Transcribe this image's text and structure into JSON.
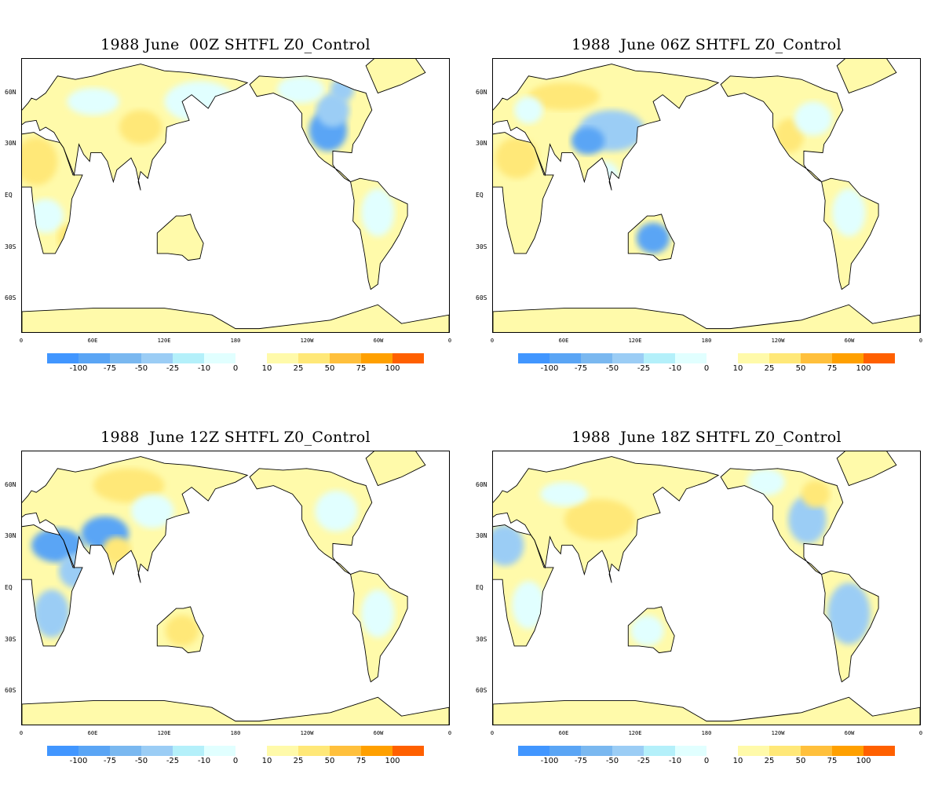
{
  "panels": [
    {
      "title": "1988 June  00Z SHTFL Z0_Control",
      "hour": "00Z"
    },
    {
      "title": "1988  June 06Z SHTFL Z0_Control",
      "hour": "06Z"
    },
    {
      "title": "1988  June 12Z SHTFL Z0_Control",
      "hour": "12Z"
    },
    {
      "title": "1988  June 18Z SHTFL Z0_Control",
      "hour": "18Z"
    }
  ],
  "lat_labels": [
    "60N",
    "30N",
    "EQ",
    "30S",
    "60S"
  ],
  "lon_labels": [
    "0",
    "60E",
    "120E",
    "180",
    "120W",
    "60W",
    "0"
  ],
  "colorbar": {
    "negative": {
      "colors": [
        "#4196ff",
        "#5aa5f5",
        "#7ab8f0",
        "#9bcdf5",
        "#b4f0fa",
        "#e1ffff"
      ],
      "labels": [
        "-100",
        "-75",
        "-50",
        "-25",
        "-10",
        "0"
      ]
    },
    "positive": {
      "colors": [
        "#fffaaa",
        "#ffe878",
        "#ffc03c",
        "#ffa000",
        "#ff6000"
      ],
      "labels": [
        "10",
        "25",
        "50",
        "75",
        "100"
      ]
    }
  },
  "colors": {
    "land_default": "#fffaaa",
    "light_blue": "#e1ffff",
    "mid_blue": "#9bcdf5",
    "strong_blue": "#5aa5f5",
    "warm": "#ffe878"
  }
}
